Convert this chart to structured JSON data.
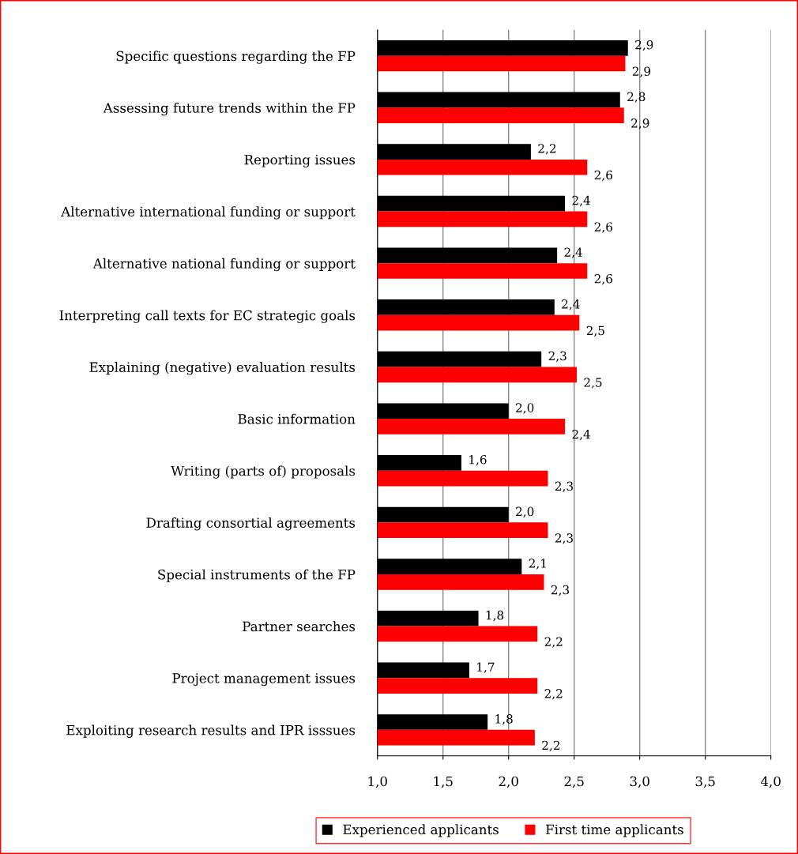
{
  "chart_data": {
    "type": "bar",
    "orientation": "horizontal",
    "categories": [
      "Specific questions regarding the FP",
      "Assessing future trends within the FP",
      "Reporting issues",
      "Alternative international funding or support",
      "Alternative national funding or support",
      "Interpreting call texts for EC strategic goals",
      "Explaining (negative) evaluation results",
      "Basic information",
      "Writing (parts of) proposals",
      "Drafting consortial agreements",
      "Special instruments of the FP",
      "Partner searches",
      "Project management issues",
      "Exploiting research results and IPR isssues"
    ],
    "series": [
      {
        "name": "Experienced applicants",
        "color": "#000000",
        "values": [
          2.91,
          2.85,
          2.17,
          2.43,
          2.37,
          2.35,
          2.25,
          2.0,
          1.64,
          2.0,
          2.1,
          1.77,
          1.7,
          1.84
        ],
        "value_labels": [
          "2,9",
          "2,8",
          "2,2",
          "2,4",
          "2,4",
          "2,4",
          "2,3",
          "2,0",
          "1,6",
          "2,0",
          "2,1",
          "1,8",
          "1,7",
          "1,8"
        ]
      },
      {
        "name": "First time applicants",
        "color": "#ff0000",
        "values": [
          2.89,
          2.88,
          2.6,
          2.6,
          2.6,
          2.54,
          2.52,
          2.43,
          2.3,
          2.3,
          2.27,
          2.22,
          2.22,
          2.2
        ],
        "value_labels": [
          "2,9",
          "2,9",
          "2,6",
          "2,6",
          "2,6",
          "2,5",
          "2,5",
          "2,4",
          "2,3",
          "2,3",
          "2,3",
          "2,2",
          "2,2",
          "2,2"
        ]
      }
    ],
    "xlim": [
      1.0,
      4.0
    ],
    "xticks": [
      {
        "value": 1.0,
        "label": "1,0"
      },
      {
        "value": 1.5,
        "label": "1,5"
      },
      {
        "value": 2.0,
        "label": "2,0"
      },
      {
        "value": 2.5,
        "label": "2,5"
      },
      {
        "value": 3.0,
        "label": "3,0"
      },
      {
        "value": 3.5,
        "label": "3,5"
      },
      {
        "value": 4.0,
        "label": "4,0"
      }
    ],
    "grid": "x",
    "legend": "bottom"
  }
}
